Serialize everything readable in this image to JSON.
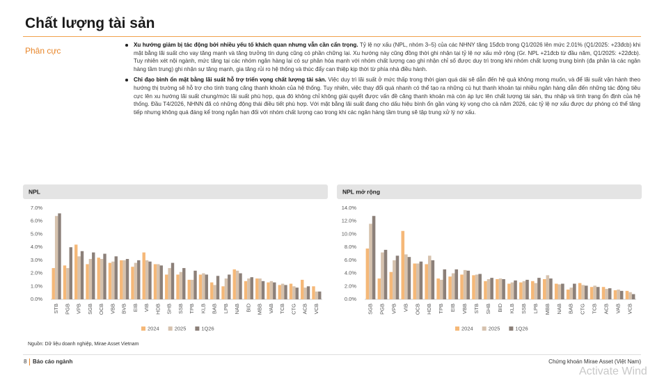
{
  "header": {
    "title": "Chất lượng tài sản"
  },
  "section": {
    "label": "Phân cực"
  },
  "bullets": [
    {
      "lead": "Xu hướng giảm bị tác động bởi nhiều yếu tố khách quan nhưng vẫn cần cẩn trọng.",
      "text": " Tỷ lệ nợ xấu (NPL, nhóm 3–5) của các NHNY tăng 15đcb trong Q1/2026 lên mức 2.01% (Q1/2025: +23đcb) khi mặt bằng lãi suất cho vay tăng mạnh và tăng trưởng tín dụng cũng có phần chững lại. Xu hướng này cũng đồng thời ghi nhận tại tỷ lệ nợ xấu mở rộng (Gr. NPL +21đcb từ đầu năm, Q1/2025: +22đcb). Tuy nhiên xét nội ngành, mức tăng tại các nhóm ngân hàng lại có sự phân hóa mạnh với nhóm chất lượng cao ghi nhận chỉ số được duy trì trong khi nhóm chất lượng trung bình (đa phần là các ngân hàng tầm trung) ghi nhận sự tăng mạnh, gia tăng rủi ro hệ thống và thúc đẩy can thiệp kịp thời từ phía nhà điều hành."
    },
    {
      "lead": "Chỉ đạo bình ổn mặt bằng lãi suất hỗ trợ triển vọng chất lượng tài sản.",
      "text": " Việc duy trì lãi suất ở mức thấp trong thời gian quá dài sẽ dẫn đến hệ quả không mong muốn, và để lãi suất vận hành theo hướng thị trường sẽ hỗ trợ cho tính trạng căng thanh khoản của hệ thống. Tuy nhiên, việc thay đổi quá nhanh có thể tạo ra những cú hụt thanh khoản tại nhiều ngân hàng dẫn đến những tác động tiêu cực lên xu hướng lãi suất chung/mức lãi suất phù hợp, qua đó không chỉ không giải quyết được vấn đề căng thanh khoản mà còn áp lực lên chất lượng tài sản, thu nhập và tính trạng ổn định của hệ thống. Đầu T4/2026, NHNN đã có những động thái điều tiết phù hợp. Với mặt bằng lãi suất đang cho dấu hiệu bình ổn gần vùng kỳ vọng cho cả năm 2026, các tỷ lệ nợ xấu được dự phóng có thể tăng tiếp nhưng không quá đáng kể trong ngắn hạn đối với nhóm chất lượng cao trong khi các ngân hàng tầm trung sẽ tập trung xử lý nợ xấu."
    }
  ],
  "chart_data": [
    {
      "type": "bar",
      "title": "NPL",
      "categories": [
        "STB",
        "PGB",
        "VPB",
        "SGB",
        "OCB",
        "VBB",
        "BVB",
        "EIB",
        "VIB",
        "HDB",
        "SHB",
        "SSB",
        "TPB",
        "KLB",
        "BAB",
        "LPB",
        "NAB",
        "BID",
        "MBB",
        "VAB",
        "TCB",
        "CTG",
        "ACB",
        "VCB"
      ],
      "series": [
        {
          "name": "2024",
          "color": "#f5b878",
          "values": [
            2.4,
            2.6,
            4.2,
            2.7,
            3.2,
            2.8,
            3.0,
            2.5,
            3.6,
            2.7,
            1.9,
            1.9,
            1.5,
            1.9,
            1.3,
            1.0,
            2.3,
            1.4,
            1.6,
            1.3,
            1.1,
            1.2,
            1.5,
            1.0
          ]
        },
        {
          "name": "2025",
          "color": "#d6c2ae",
          "values": [
            6.4,
            2.4,
            3.3,
            3.1,
            3.1,
            2.9,
            3.0,
            2.8,
            3.0,
            2.7,
            2.4,
            2.1,
            1.5,
            2.0,
            1.1,
            1.6,
            2.2,
            1.6,
            1.6,
            1.4,
            1.2,
            1.0,
            0.9,
            0.6
          ]
        },
        {
          "name": "1Q26",
          "color": "#8c8079",
          "values": [
            6.6,
            4.0,
            3.7,
            3.6,
            3.5,
            3.3,
            3.1,
            3.0,
            2.9,
            2.6,
            2.8,
            2.4,
            2.2,
            1.9,
            1.8,
            1.9,
            2.0,
            1.7,
            1.4,
            1.3,
            1.1,
            0.9,
            1.0,
            0.6
          ]
        }
      ],
      "ylim": [
        0,
        7
      ],
      "yticks": [
        {
          "value": 0,
          "label": "0.0%"
        },
        {
          "value": 1,
          "label": "1.0%"
        },
        {
          "value": 2,
          "label": "2.0%"
        },
        {
          "value": 3,
          "label": "3.0%"
        },
        {
          "value": 4,
          "label": "4.0%"
        },
        {
          "value": 5,
          "label": "5.0%"
        },
        {
          "value": 6,
          "label": "6.0%"
        },
        {
          "value": 7,
          "label": "7.0%"
        }
      ],
      "grid": false,
      "legend": "bottom"
    },
    {
      "type": "bar",
      "title": "NPL mở rộng",
      "categories": [
        "SGB",
        "PGB",
        "VPB",
        "VIB",
        "OCB",
        "HDB",
        "TPB",
        "EIB",
        "VBB",
        "STB",
        "SHB",
        "BID",
        "KLB",
        "SSB",
        "LPB",
        "MBB",
        "NAB",
        "BAB",
        "CTG",
        "TCB",
        "ACB",
        "VAB",
        "VCB"
      ],
      "series": [
        {
          "name": "2024",
          "color": "#f5b878",
          "values": [
            7.8,
            3.2,
            4.2,
            10.5,
            5.5,
            5.4,
            3.2,
            3.5,
            3.8,
            3.7,
            2.8,
            3.1,
            2.4,
            2.6,
            2.8,
            3.1,
            2.4,
            1.5,
            2.5,
            1.9,
            1.9,
            1.4,
            1.3
          ]
        },
        {
          "name": "2025",
          "color": "#d6c2ae",
          "values": [
            11.6,
            7.2,
            6.0,
            6.9,
            5.5,
            6.7,
            3.0,
            4.0,
            4.5,
            3.8,
            3.1,
            3.2,
            2.6,
            2.8,
            2.5,
            3.7,
            2.3,
            1.8,
            2.2,
            2.1,
            1.6,
            1.5,
            1.1
          ]
        },
        {
          "name": "1Q26",
          "color": "#8c8079",
          "values": [
            12.8,
            7.6,
            6.7,
            6.5,
            5.8,
            6.0,
            4.6,
            4.6,
            4.4,
            3.9,
            3.3,
            3.1,
            2.9,
            3.0,
            3.3,
            3.2,
            2.4,
            2.4,
            2.1,
            1.9,
            1.7,
            1.3,
            0.8
          ]
        }
      ],
      "ylim": [
        0,
        14
      ],
      "yticks": [
        {
          "value": 0,
          "label": "0.0%"
        },
        {
          "value": 2,
          "label": "2.0%"
        },
        {
          "value": 4,
          "label": "4.0%"
        },
        {
          "value": 6,
          "label": "6.0%"
        },
        {
          "value": 8,
          "label": "8.0%"
        },
        {
          "value": 10,
          "label": "10.0%"
        },
        {
          "value": 12,
          "label": "12.0%"
        },
        {
          "value": 14,
          "label": "14.0%"
        }
      ],
      "grid": false,
      "legend": "bottom"
    }
  ],
  "source": "Nguồn: Dữ liệu doanh nghiệp, Mirae Asset Vietnam",
  "footer": {
    "page": "8",
    "name": "Báo cáo ngành",
    "company": "Chứng khoán Mirae Asset (Việt Nam)"
  },
  "watermark": "Activate Wind"
}
